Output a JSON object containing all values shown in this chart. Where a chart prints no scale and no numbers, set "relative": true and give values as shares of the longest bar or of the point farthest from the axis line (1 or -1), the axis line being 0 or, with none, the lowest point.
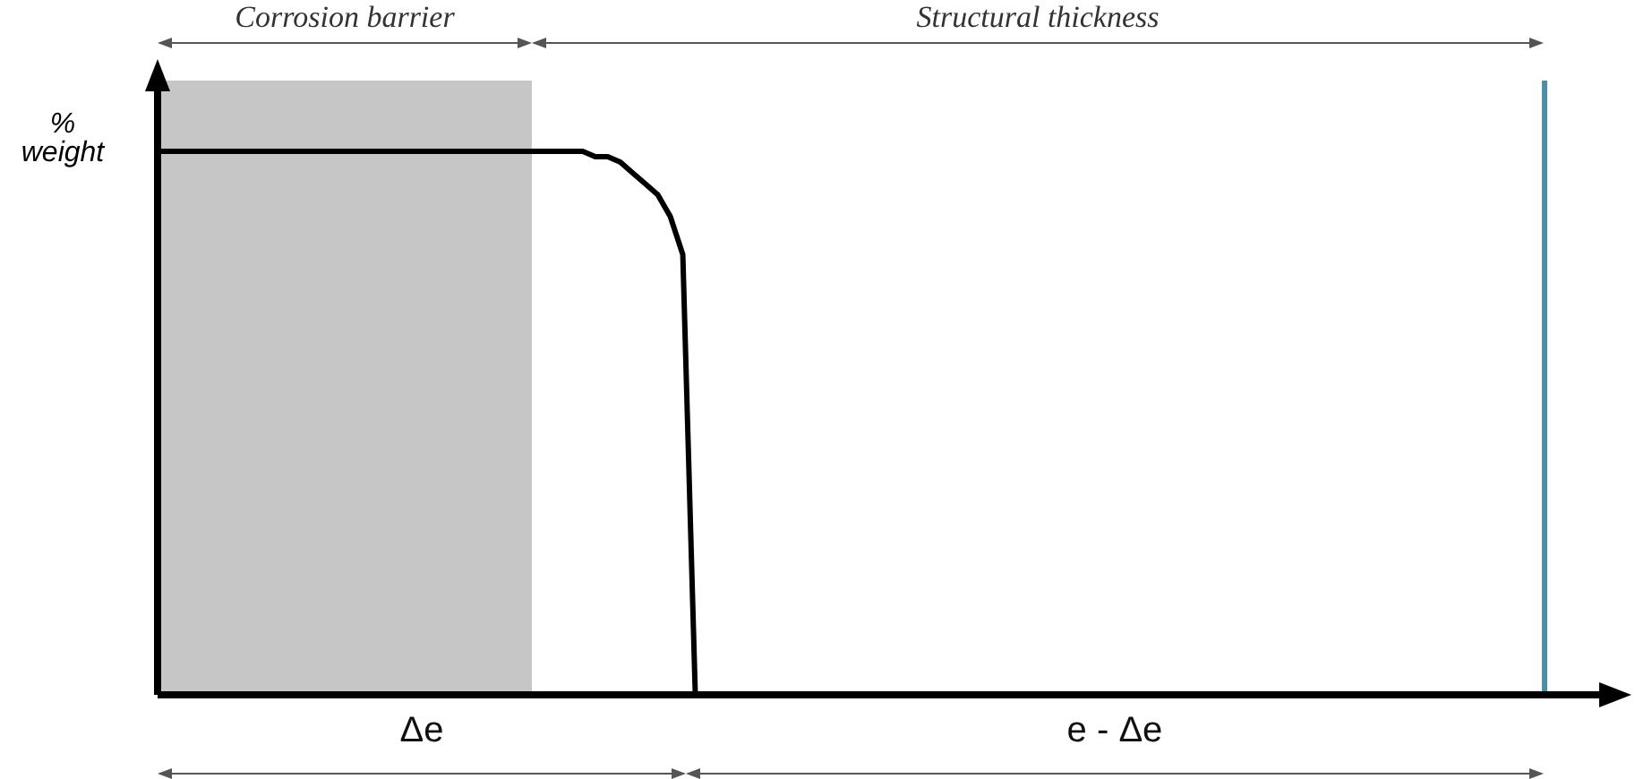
{
  "chart_data": {
    "type": "line",
    "relative": true,
    "ylabel": "% weight",
    "categories": [
      null,
      null,
      null,
      null,
      null,
      null,
      null,
      null,
      null,
      null,
      null,
      null,
      null,
      null,
      null,
      null,
      null,
      null,
      null,
      null,
      null,
      null,
      null,
      null,
      null,
      null,
      null,
      null,
      null,
      null,
      null,
      null,
      null,
      null,
      null,
      null,
      null,
      null,
      null,
      null,
      null,
      null,
      null,
      null,
      null,
      null,
      null,
      null,
      null,
      null,
      null,
      null,
      null,
      null,
      null,
      null,
      null,
      null,
      null,
      null,
      null,
      null,
      null,
      null,
      null,
      null,
      null,
      null,
      null,
      null,
      null,
      null,
      null,
      null,
      null,
      null,
      null,
      null,
      null,
      null,
      null,
      null,
      null,
      null,
      null,
      null,
      null,
      null,
      null,
      null,
      null,
      null,
      null,
      null,
      null,
      null,
      null,
      null,
      null,
      null,
      null,
      null,
      null,
      null,
      null,
      null,
      null,
      null,
      null,
      null,
      null,
      null,
      null,
      null,
      null,
      null,
      null,
      null
    ],
    "series": [
      {
        "color": "#000000",
        "values": [
          1,
          1,
          1,
          1,
          1,
          1,
          1,
          1,
          1,
          1,
          1,
          1,
          1,
          1,
          1,
          1,
          1,
          1,
          1,
          1,
          1,
          1,
          1,
          1,
          1,
          1,
          1,
          1,
          1,
          1,
          1,
          1,
          1,
          1,
          1,
          0.99,
          0.99,
          0.98,
          0.96,
          0.94,
          0.92,
          0.88,
          0.81,
          0,
          null,
          null,
          null,
          null,
          null,
          null,
          null,
          null,
          null,
          null,
          null,
          null,
          null,
          null,
          null,
          null,
          null,
          null,
          null,
          null,
          null,
          null,
          null,
          null,
          null,
          null,
          null,
          null,
          null,
          null,
          null,
          null,
          null,
          null,
          null,
          null,
          null,
          null,
          null,
          null,
          null,
          null,
          null,
          null,
          null,
          null,
          null,
          null,
          null,
          null,
          null,
          null,
          null,
          null,
          null,
          null,
          null,
          null,
          null,
          null,
          null,
          null,
          null,
          null,
          null,
          null,
          null,
          null,
          null,
          null,
          null,
          null,
          null,
          null
        ]
      }
    ],
    "marker": "none",
    "line_style": "solid",
    "ref_lines": [
      {
        "axis": "x",
        "color": "#4a8fa8"
      }
    ],
    "annotations": [
      "Corrosion barrier",
      "Structural thickness",
      "Δe",
      "e - Δe"
    ]
  }
}
